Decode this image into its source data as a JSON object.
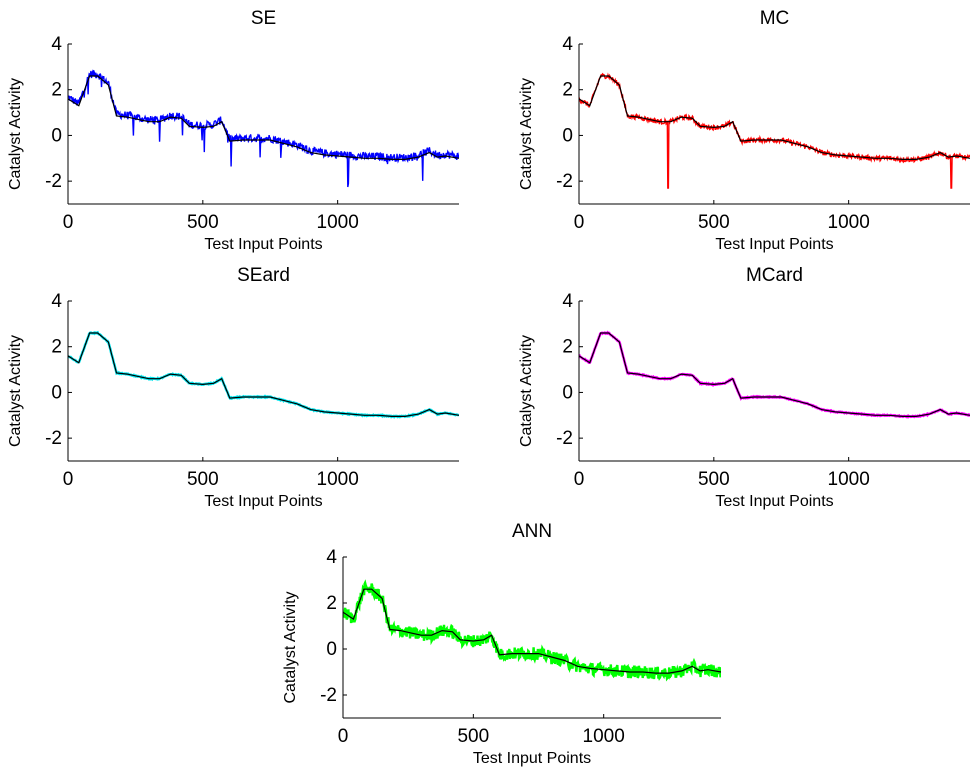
{
  "chart_data": [
    {
      "type": "line",
      "title": "SE",
      "xlabel": "Test Input Points",
      "ylabel": "Catalyst Activity",
      "xlim": [
        0,
        1450
      ],
      "ylim": [
        -3,
        4
      ],
      "xticks": [
        0,
        500,
        1000
      ],
      "yticks": [
        -2,
        0,
        2,
        4
      ],
      "series": [
        {
          "color": "#000000",
          "values_ref": "truth"
        },
        {
          "color": "#0000ff",
          "style": "noisy-spiky",
          "mean_offset": 0.05
        }
      ]
    },
    {
      "type": "line",
      "title": "MC",
      "xlabel": "Test Input Points",
      "ylabel": "Catalyst Activity",
      "xlim": [
        0,
        1450
      ],
      "ylim": [
        -3,
        4
      ],
      "xticks": [
        0,
        500,
        1000
      ],
      "yticks": [
        -2,
        0,
        2,
        4
      ],
      "series": [
        {
          "color": "#000000",
          "values_ref": "truth"
        },
        {
          "color": "#ff0000",
          "style": "noisy-few-spikes",
          "mean_offset": 0.0
        }
      ]
    },
    {
      "type": "line",
      "title": "SEard",
      "xlabel": "Test Input Points",
      "ylabel": "Catalyst Activity",
      "xlim": [
        0,
        1450
      ],
      "ylim": [
        -3,
        4
      ],
      "xticks": [
        0,
        500,
        1000
      ],
      "yticks": [
        -2,
        0,
        2,
        4
      ],
      "series": [
        {
          "color": "#000000",
          "values_ref": "truth"
        },
        {
          "color": "#00e5ee",
          "style": "smooth",
          "mean_offset": 0.0
        }
      ]
    },
    {
      "type": "line",
      "title": "MCard",
      "xlabel": "Test Input Points",
      "ylabel": "Catalyst Activity",
      "xlim": [
        0,
        1450
      ],
      "ylim": [
        -3,
        4
      ],
      "xticks": [
        0,
        500,
        1000
      ],
      "yticks": [
        -2,
        0,
        2,
        4
      ],
      "series": [
        {
          "color": "#000000",
          "values_ref": "truth"
        },
        {
          "color": "#ff00ff",
          "style": "smooth",
          "mean_offset": 0.0
        }
      ]
    },
    {
      "type": "line",
      "title": "ANN",
      "xlabel": "Test Input Points",
      "ylabel": "Catalyst Activity",
      "xlim": [
        0,
        1450
      ],
      "ylim": [
        -3,
        4
      ],
      "xticks": [
        0,
        500,
        1000
      ],
      "yticks": [
        -2,
        0,
        2,
        4
      ],
      "series": [
        {
          "color": "#000000",
          "values_ref": "truth"
        },
        {
          "color": "#00ff00",
          "style": "noisy-thick",
          "mean_offset": 0.0
        }
      ]
    }
  ],
  "truth": {
    "x": [
      0,
      40,
      80,
      110,
      150,
      180,
      220,
      260,
      300,
      340,
      380,
      420,
      450,
      500,
      540,
      570,
      600,
      650,
      700,
      750,
      800,
      850,
      900,
      950,
      1000,
      1050,
      1100,
      1150,
      1200,
      1250,
      1300,
      1340,
      1370,
      1400,
      1450
    ],
    "y": [
      1.6,
      1.3,
      2.6,
      2.6,
      2.2,
      0.85,
      0.8,
      0.7,
      0.6,
      0.6,
      0.8,
      0.75,
      0.4,
      0.35,
      0.4,
      0.6,
      -0.25,
      -0.2,
      -0.2,
      -0.2,
      -0.35,
      -0.5,
      -0.75,
      -0.85,
      -0.9,
      -0.95,
      -1.0,
      -1.0,
      -1.05,
      -1.05,
      -0.95,
      -0.75,
      -0.95,
      -0.9,
      -1.0
    ]
  }
}
